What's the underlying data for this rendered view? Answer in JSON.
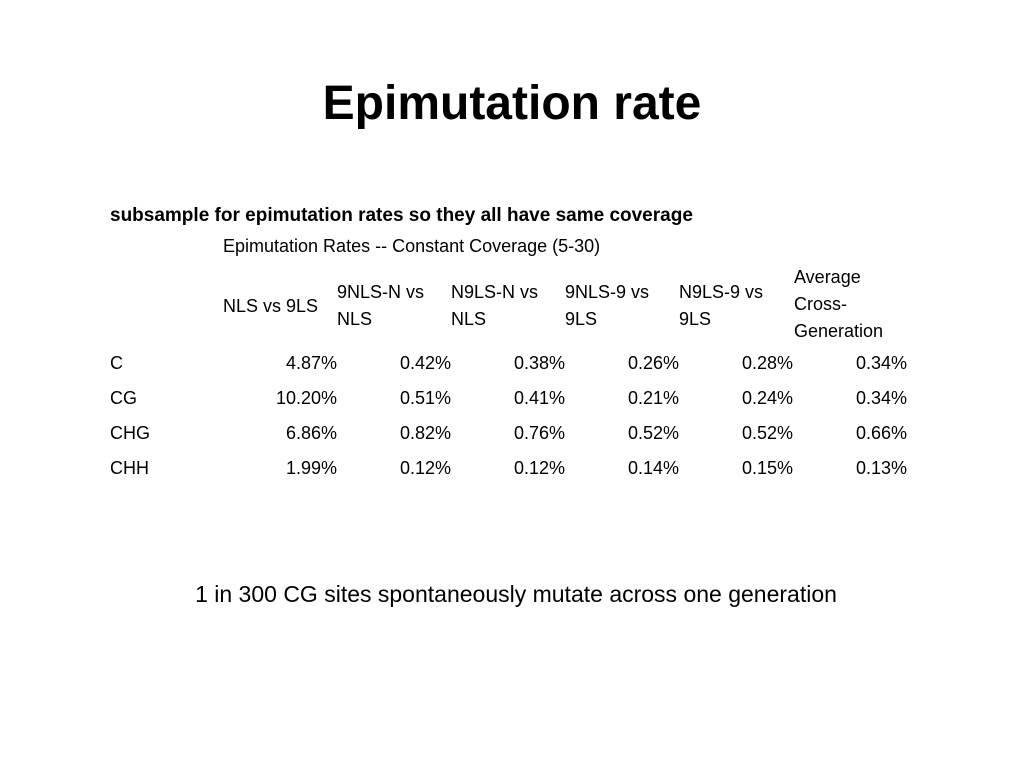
{
  "slide": {
    "title": "Epimutation rate",
    "footer": "1 in 300 CG sites spontaneously mutate across one generation"
  },
  "table": {
    "heading": "subsample for epimutation rates so they all have same coverage",
    "subheading": "Epimutation Rates  -- Constant Coverage (5-30)",
    "columns": [
      {
        "lines": [
          "NLS vs 9LS"
        ]
      },
      {
        "lines": [
          "9NLS-N vs",
          "NLS"
        ]
      },
      {
        "lines": [
          "N9LS-N vs",
          "NLS"
        ]
      },
      {
        "lines": [
          "9NLS-9 vs",
          "9LS"
        ]
      },
      {
        "lines": [
          "N9LS-9 vs",
          "9LS"
        ]
      },
      {
        "lines": [
          "Average",
          "Cross-",
          "Generation"
        ]
      }
    ],
    "rows": [
      {
        "label": "C",
        "values": [
          "4.87%",
          "0.42%",
          "0.38%",
          "0.26%",
          "0.28%",
          "0.34%"
        ]
      },
      {
        "label": "CG",
        "values": [
          "10.20%",
          "0.51%",
          "0.41%",
          "0.21%",
          "0.24%",
          "0.34%"
        ]
      },
      {
        "label": "CHG",
        "values": [
          "6.86%",
          "0.82%",
          "0.76%",
          "0.52%",
          "0.52%",
          "0.66%"
        ]
      },
      {
        "label": "CHH",
        "values": [
          "1.99%",
          "0.12%",
          "0.12%",
          "0.14%",
          "0.15%",
          "0.13%"
        ]
      }
    ]
  }
}
